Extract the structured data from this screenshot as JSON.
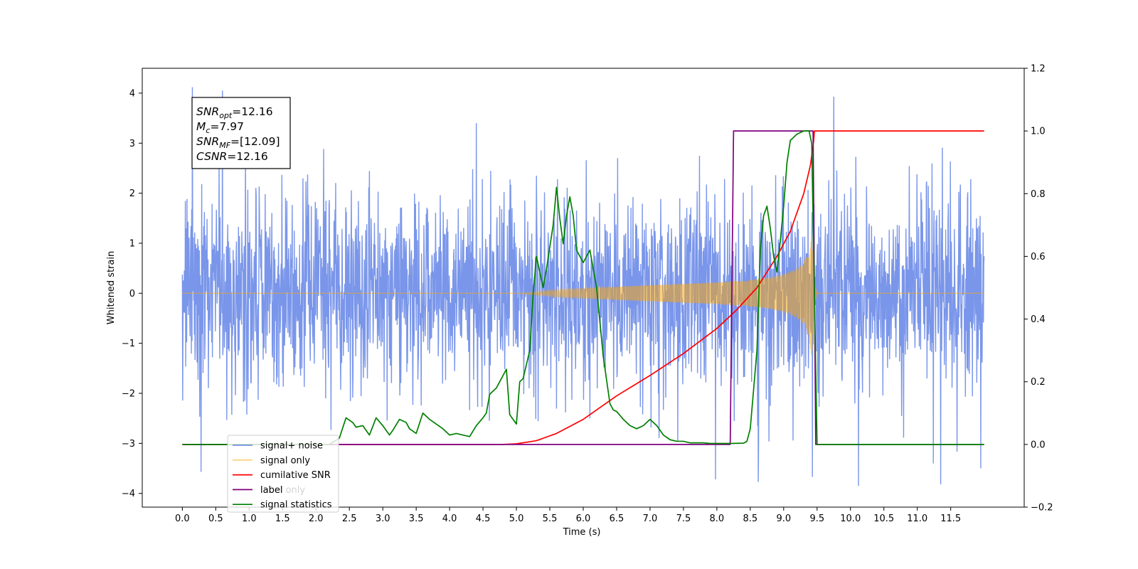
{
  "chart_data": {
    "type": "line",
    "title": "",
    "xlabel": "Time (s)",
    "ylabel": "Whitened strain",
    "y2label": "",
    "xlim": [
      -0.6,
      12.6
    ],
    "ylim": [
      -4.2744,
      4.4968
    ],
    "y2lim": [
      -0.2,
      1.2
    ],
    "x_ticks": [
      0.0,
      0.5,
      1.0,
      1.5,
      2.0,
      2.5,
      3.0,
      3.5,
      4.0,
      4.5,
      5.0,
      5.5,
      6.0,
      6.5,
      7.0,
      7.5,
      8.0,
      8.5,
      9.0,
      9.5,
      10.0,
      10.5,
      11.0,
      11.5
    ],
    "x_tick_labels": [
      "0.0",
      "0.5",
      "1.0",
      "1.5",
      "2.0",
      "2.5",
      "3.0",
      "3.5",
      "4.0",
      "4.5",
      "5.0",
      "5.5",
      "6.0",
      "6.5",
      "7.0",
      "7.5",
      "8.0",
      "8.5",
      "9.0",
      "9.5",
      "10.0",
      "10.5",
      "11.0",
      "11.5"
    ],
    "y_ticks": [
      -4,
      -3,
      -2,
      -1,
      0,
      1,
      2,
      3,
      4
    ],
    "y_tick_labels": [
      "−4",
      "−3",
      "−2",
      "−1",
      "0",
      "1",
      "2",
      "3",
      "4"
    ],
    "y2_ticks": [
      -0.2,
      0.0,
      0.2,
      0.4,
      0.6,
      0.8,
      1.0,
      1.2
    ],
    "y2_tick_labels": [
      "−0.2",
      "0.0",
      "0.2",
      "0.4",
      "0.6",
      "0.8",
      "1.0",
      "1.2"
    ],
    "grid": false,
    "legend_placement": "lower-left",
    "annotation": [
      {
        "base": "SNR",
        "sub": "opt",
        "value": "=12.16"
      },
      {
        "base": "M",
        "sub": "c",
        "value": "=7.97"
      },
      {
        "base": "SNR",
        "sub": "MF",
        "value": "=[12.09]"
      },
      {
        "base": "CSNR",
        "sub": "",
        "value": "=12.16"
      }
    ],
    "series": [
      {
        "name": "signal+ noise",
        "axis": "left",
        "color": "#4169e1",
        "alpha": 0.7,
        "kind": "noise",
        "x_range": [
          0.0,
          12.0
        ],
        "envelope_typical": 1.2,
        "envelope_peak": 4.1,
        "marked_extremes": [
          {
            "x": 0.15,
            "y": 4.12
          },
          {
            "x": 0.6,
            "y": 4.05
          },
          {
            "x": 9.75,
            "y": 3.93
          },
          {
            "x": 0.28,
            "y": -3.57
          },
          {
            "x": 9.43,
            "y": -3.67
          },
          {
            "x": 10.12,
            "y": -3.85
          },
          {
            "x": 11.35,
            "y": -3.82
          },
          {
            "x": 11.95,
            "y": -3.5
          },
          {
            "x": 8.62,
            "y": -3.77
          },
          {
            "x": 7.98,
            "y": -3.72
          }
        ]
      },
      {
        "name": "signal only",
        "axis": "left",
        "color": "#ffa500",
        "alpha": 0.5,
        "kind": "chirp",
        "x": [
          0.0,
          5.0,
          5.3,
          5.6,
          6.0,
          6.5,
          7.0,
          7.5,
          8.0,
          8.5,
          8.8,
          9.0,
          9.2,
          9.3,
          9.38,
          9.42,
          9.45,
          9.5,
          12.0
        ],
        "amplitude": [
          0.0,
          0.0,
          0.03,
          0.07,
          0.1,
          0.13,
          0.16,
          0.19,
          0.22,
          0.27,
          0.32,
          0.38,
          0.5,
          0.62,
          0.85,
          1.3,
          0.3,
          0.0,
          0.0
        ]
      },
      {
        "name": "cumilative SNR",
        "axis": "right",
        "color": "#ff0000",
        "x": [
          0.0,
          4.8,
          5.0,
          5.3,
          5.6,
          6.0,
          6.5,
          7.0,
          7.5,
          8.0,
          8.3,
          8.6,
          8.9,
          9.1,
          9.3,
          9.4,
          9.45,
          9.46,
          9.5,
          12.0
        ],
        "values": [
          0.0,
          0.0,
          0.002,
          0.012,
          0.035,
          0.08,
          0.155,
          0.22,
          0.29,
          0.37,
          0.43,
          0.5,
          0.6,
          0.68,
          0.8,
          0.89,
          0.97,
          1.0,
          1.0,
          1.0
        ]
      },
      {
        "name": "label",
        "axis": "right",
        "color": "#800080",
        "x": [
          0.0,
          8.2,
          8.25,
          9.44,
          9.48,
          12.0
        ],
        "values": [
          0.0,
          0.0,
          1.0,
          1.0,
          0.0,
          0.0
        ]
      },
      {
        "name": "signal statistics",
        "axis": "right",
        "color": "#008000",
        "x": [
          0.0,
          2.2,
          2.35,
          2.45,
          2.55,
          2.6,
          2.7,
          2.8,
          2.9,
          3.0,
          3.1,
          3.15,
          3.25,
          3.35,
          3.4,
          3.5,
          3.6,
          3.7,
          3.8,
          3.9,
          4.0,
          4.1,
          4.2,
          4.3,
          4.4,
          4.5,
          4.55,
          4.6,
          4.7,
          4.75,
          4.8,
          4.85,
          4.9,
          5.0,
          5.05,
          5.1,
          5.2,
          5.25,
          5.3,
          5.35,
          5.4,
          5.45,
          5.5,
          5.55,
          5.6,
          5.65,
          5.7,
          5.75,
          5.8,
          5.85,
          5.9,
          6.0,
          6.05,
          6.1,
          6.2,
          6.3,
          6.4,
          6.45,
          6.5,
          6.6,
          6.7,
          6.8,
          6.9,
          7.0,
          7.1,
          7.2,
          7.3,
          7.4,
          7.5,
          7.6,
          7.7,
          7.8,
          7.9,
          8.0,
          8.1,
          8.2,
          8.4,
          8.45,
          8.5,
          8.6,
          8.65,
          8.7,
          8.75,
          8.8,
          8.85,
          8.9,
          8.95,
          9.0,
          9.05,
          9.1,
          9.2,
          9.3,
          9.38,
          9.42,
          9.45,
          9.5,
          12.0
        ],
        "values": [
          0.0,
          0.0,
          0.02,
          0.085,
          0.07,
          0.055,
          0.06,
          0.03,
          0.085,
          0.06,
          0.03,
          0.045,
          0.08,
          0.07,
          0.05,
          0.035,
          0.1,
          0.08,
          0.065,
          0.05,
          0.03,
          0.035,
          0.03,
          0.025,
          0.06,
          0.085,
          0.1,
          0.16,
          0.18,
          0.2,
          0.22,
          0.24,
          0.095,
          0.065,
          0.2,
          0.21,
          0.3,
          0.48,
          0.6,
          0.55,
          0.5,
          0.56,
          0.63,
          0.7,
          0.82,
          0.72,
          0.64,
          0.73,
          0.79,
          0.73,
          0.62,
          0.58,
          0.6,
          0.62,
          0.5,
          0.28,
          0.13,
          0.11,
          0.105,
          0.08,
          0.06,
          0.05,
          0.06,
          0.08,
          0.06,
          0.03,
          0.015,
          0.01,
          0.01,
          0.005,
          0.005,
          0.005,
          0.003,
          0.003,
          0.003,
          0.003,
          0.004,
          0.01,
          0.05,
          0.3,
          0.62,
          0.73,
          0.76,
          0.69,
          0.6,
          0.55,
          0.65,
          0.76,
          0.9,
          0.97,
          0.99,
          1.0,
          1.0,
          0.96,
          0.6,
          0.0,
          0.0
        ]
      },
      {
        "name": "signal only",
        "axis": "right",
        "color": "#d3d3d3",
        "kind": "legend-only",
        "legend_label_visible": "label only"
      }
    ]
  }
}
